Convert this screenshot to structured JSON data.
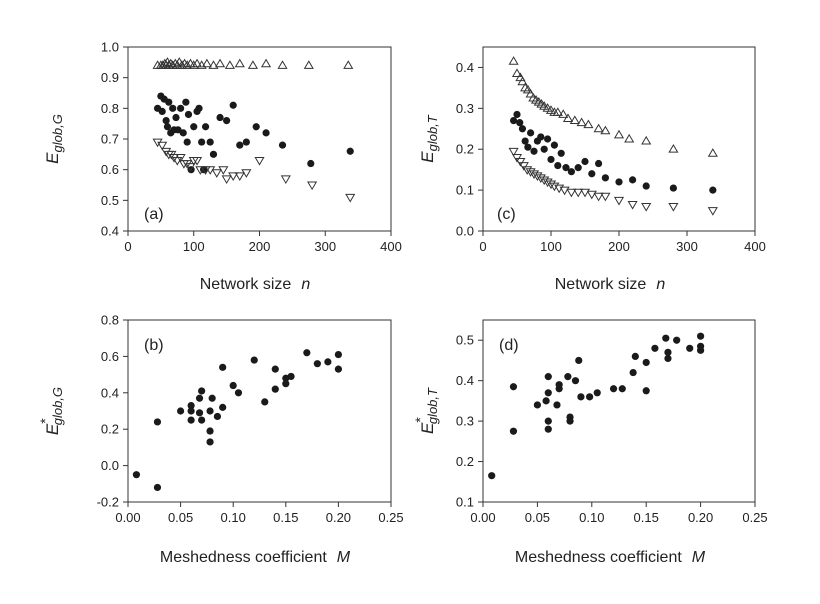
{
  "chart_data": [
    {
      "id": "a",
      "type": "scatter",
      "panel_label": "(a)",
      "xlabel": "Network size",
      "xlabel_var": "n",
      "ylabel_main": "E",
      "ylabel_sub": "glob,G",
      "ylabel_star": "",
      "xlim": [
        0,
        400
      ],
      "ylim": [
        0.4,
        1.0
      ],
      "xticks": [
        "0",
        "100",
        "200",
        "300",
        "400"
      ],
      "xtick_values": [
        0,
        100,
        200,
        300,
        400
      ],
      "yticks": [
        "0.4",
        "0.5",
        "0.6",
        "0.7",
        "0.8",
        "0.9",
        "1.0"
      ],
      "ytick_values": [
        0.4,
        0.5,
        0.6,
        0.7,
        0.8,
        0.9,
        1.0
      ],
      "series": [
        {
          "marker": "triangle-up",
          "points": [
            [
              45,
              0.94
            ],
            [
              50,
              0.94
            ],
            [
              53,
              0.94
            ],
            [
              56,
              0.945
            ],
            [
              58,
              0.94
            ],
            [
              60,
              0.95
            ],
            [
              62,
              0.94
            ],
            [
              65,
              0.945
            ],
            [
              68,
              0.94
            ],
            [
              72,
              0.945
            ],
            [
              75,
              0.94
            ],
            [
              78,
              0.95
            ],
            [
              82,
              0.94
            ],
            [
              86,
              0.945
            ],
            [
              90,
              0.94
            ],
            [
              95,
              0.945
            ],
            [
              100,
              0.94
            ],
            [
              105,
              0.945
            ],
            [
              112,
              0.94
            ],
            [
              120,
              0.945
            ],
            [
              130,
              0.94
            ],
            [
              140,
              0.945
            ],
            [
              155,
              0.94
            ],
            [
              170,
              0.945
            ],
            [
              190,
              0.94
            ],
            [
              210,
              0.945
            ],
            [
              235,
              0.94
            ],
            [
              275,
              0.94
            ],
            [
              335,
              0.94
            ]
          ]
        },
        {
          "marker": "circle",
          "points": [
            [
              45,
              0.8
            ],
            [
              50,
              0.84
            ],
            [
              52,
              0.79
            ],
            [
              55,
              0.83
            ],
            [
              58,
              0.76
            ],
            [
              60,
              0.74
            ],
            [
              62,
              0.82
            ],
            [
              65,
              0.72
            ],
            [
              68,
              0.8
            ],
            [
              70,
              0.73
            ],
            [
              73,
              0.77
            ],
            [
              76,
              0.73
            ],
            [
              80,
              0.8
            ],
            [
              84,
              0.72
            ],
            [
              88,
              0.82
            ],
            [
              90,
              0.69
            ],
            [
              92,
              0.78
            ],
            [
              96,
              0.6
            ],
            [
              100,
              0.74
            ],
            [
              105,
              0.79
            ],
            [
              108,
              0.8
            ],
            [
              112,
              0.69
            ],
            [
              115,
              0.6
            ],
            [
              118,
              0.74
            ],
            [
              125,
              0.69
            ],
            [
              130,
              0.65
            ],
            [
              140,
              0.77
            ],
            [
              150,
              0.76
            ],
            [
              160,
              0.81
            ],
            [
              170,
              0.68
            ],
            [
              180,
              0.69
            ],
            [
              195,
              0.74
            ],
            [
              210,
              0.72
            ],
            [
              235,
              0.68
            ],
            [
              278,
              0.62
            ],
            [
              338,
              0.66
            ]
          ]
        },
        {
          "marker": "triangle-down",
          "points": [
            [
              45,
              0.69
            ],
            [
              52,
              0.68
            ],
            [
              58,
              0.66
            ],
            [
              62,
              0.65
            ],
            [
              66,
              0.65
            ],
            [
              70,
              0.64
            ],
            [
              75,
              0.63
            ],
            [
              80,
              0.64
            ],
            [
              85,
              0.62
            ],
            [
              90,
              0.62
            ],
            [
              95,
              0.61
            ],
            [
              100,
              0.63
            ],
            [
              105,
              0.63
            ],
            [
              110,
              0.6
            ],
            [
              118,
              0.6
            ],
            [
              125,
              0.6
            ],
            [
              135,
              0.59
            ],
            [
              145,
              0.6
            ],
            [
              150,
              0.57
            ],
            [
              160,
              0.58
            ],
            [
              170,
              0.58
            ],
            [
              180,
              0.59
            ],
            [
              200,
              0.63
            ],
            [
              240,
              0.57
            ],
            [
              280,
              0.55
            ],
            [
              338,
              0.51
            ]
          ]
        }
      ]
    },
    {
      "id": "c",
      "type": "scatter",
      "panel_label": "(c)",
      "xlabel": "Network size",
      "xlabel_var": "n",
      "ylabel_main": "E",
      "ylabel_sub": "glob,T",
      "ylabel_star": "",
      "xlim": [
        0,
        400
      ],
      "ylim": [
        0,
        0.45
      ],
      "xticks": [
        "0",
        "100",
        "200",
        "300",
        "400"
      ],
      "xtick_values": [
        0,
        100,
        200,
        300,
        400
      ],
      "yticks": [
        "0.0",
        "0.1",
        "0.2",
        "0.3",
        "0.4"
      ],
      "ytick_values": [
        0,
        0.1,
        0.2,
        0.3,
        0.4
      ],
      "series": [
        {
          "marker": "triangle-up",
          "points": [
            [
              45,
              0.415
            ],
            [
              50,
              0.385
            ],
            [
              55,
              0.375
            ],
            [
              58,
              0.365
            ],
            [
              62,
              0.35
            ],
            [
              66,
              0.345
            ],
            [
              70,
              0.335
            ],
            [
              74,
              0.325
            ],
            [
              78,
              0.32
            ],
            [
              82,
              0.315
            ],
            [
              86,
              0.31
            ],
            [
              90,
              0.305
            ],
            [
              95,
              0.3
            ],
            [
              100,
              0.295
            ],
            [
              105,
              0.29
            ],
            [
              110,
              0.29
            ],
            [
              118,
              0.285
            ],
            [
              125,
              0.275
            ],
            [
              135,
              0.27
            ],
            [
              145,
              0.265
            ],
            [
              155,
              0.26
            ],
            [
              170,
              0.25
            ],
            [
              180,
              0.245
            ],
            [
              200,
              0.235
            ],
            [
              215,
              0.225
            ],
            [
              240,
              0.22
            ],
            [
              280,
              0.2
            ],
            [
              338,
              0.19
            ]
          ]
        },
        {
          "marker": "circle",
          "points": [
            [
              45,
              0.27
            ],
            [
              50,
              0.285
            ],
            [
              54,
              0.265
            ],
            [
              58,
              0.25
            ],
            [
              62,
              0.22
            ],
            [
              66,
              0.205
            ],
            [
              70,
              0.24
            ],
            [
              75,
              0.195
            ],
            [
              80,
              0.22
            ],
            [
              85,
              0.23
            ],
            [
              90,
              0.2
            ],
            [
              95,
              0.225
            ],
            [
              100,
              0.175
            ],
            [
              105,
              0.21
            ],
            [
              110,
              0.16
            ],
            [
              115,
              0.19
            ],
            [
              122,
              0.155
            ],
            [
              130,
              0.145
            ],
            [
              140,
              0.155
            ],
            [
              150,
              0.17
            ],
            [
              160,
              0.14
            ],
            [
              170,
              0.165
            ],
            [
              180,
              0.13
            ],
            [
              200,
              0.12
            ],
            [
              220,
              0.125
            ],
            [
              240,
              0.11
            ],
            [
              280,
              0.105
            ],
            [
              338,
              0.1
            ]
          ]
        },
        {
          "marker": "triangle-down",
          "points": [
            [
              45,
              0.195
            ],
            [
              50,
              0.18
            ],
            [
              55,
              0.17
            ],
            [
              60,
              0.16
            ],
            [
              65,
              0.15
            ],
            [
              70,
              0.145
            ],
            [
              75,
              0.14
            ],
            [
              80,
              0.135
            ],
            [
              85,
              0.13
            ],
            [
              90,
              0.125
            ],
            [
              95,
              0.12
            ],
            [
              100,
              0.115
            ],
            [
              105,
              0.11
            ],
            [
              112,
              0.105
            ],
            [
              120,
              0.1
            ],
            [
              130,
              0.095
            ],
            [
              140,
              0.095
            ],
            [
              150,
              0.095
            ],
            [
              160,
              0.09
            ],
            [
              170,
              0.085
            ],
            [
              180,
              0.085
            ],
            [
              200,
              0.075
            ],
            [
              220,
              0.065
            ],
            [
              240,
              0.06
            ],
            [
              280,
              0.06
            ],
            [
              338,
              0.05
            ]
          ]
        }
      ]
    },
    {
      "id": "b",
      "type": "scatter",
      "panel_label": "(b)",
      "xlabel": "Meshedness coefficient",
      "xlabel_var": "M",
      "ylabel_main": "E",
      "ylabel_sub": "glob,G",
      "ylabel_star": "*",
      "xlim": [
        0,
        0.25
      ],
      "ylim": [
        -0.2,
        0.8
      ],
      "xticks": [
        "0.00",
        "0.05",
        "0.10",
        "0.15",
        "0.20",
        "0.25"
      ],
      "xtick_values": [
        0,
        0.05,
        0.1,
        0.15,
        0.2,
        0.25
      ],
      "yticks": [
        "-0.2",
        "0.0",
        "0.2",
        "0.4",
        "0.6",
        "0.8"
      ],
      "ytick_values": [
        -0.2,
        0,
        0.2,
        0.4,
        0.6,
        0.8
      ],
      "series": [
        {
          "marker": "circle",
          "points": [
            [
              0.008,
              -0.05
            ],
            [
              0.028,
              -0.12
            ],
            [
              0.028,
              0.24
            ],
            [
              0.05,
              0.3
            ],
            [
              0.06,
              0.25
            ],
            [
              0.06,
              0.3
            ],
            [
              0.06,
              0.33
            ],
            [
              0.068,
              0.37
            ],
            [
              0.068,
              0.29
            ],
            [
              0.07,
              0.41
            ],
            [
              0.07,
              0.25
            ],
            [
              0.078,
              0.3
            ],
            [
              0.078,
              0.19
            ],
            [
              0.078,
              0.13
            ],
            [
              0.08,
              0.37
            ],
            [
              0.085,
              0.27
            ],
            [
              0.09,
              0.32
            ],
            [
              0.09,
              0.54
            ],
            [
              0.1,
              0.44
            ],
            [
              0.105,
              0.4
            ],
            [
              0.12,
              0.58
            ],
            [
              0.13,
              0.35
            ],
            [
              0.14,
              0.42
            ],
            [
              0.14,
              0.53
            ],
            [
              0.15,
              0.45
            ],
            [
              0.15,
              0.48
            ],
            [
              0.155,
              0.49
            ],
            [
              0.17,
              0.62
            ],
            [
              0.18,
              0.56
            ],
            [
              0.19,
              0.57
            ],
            [
              0.2,
              0.53
            ],
            [
              0.2,
              0.61
            ]
          ]
        }
      ]
    },
    {
      "id": "d",
      "type": "scatter",
      "panel_label": "(d)",
      "xlabel": "Meshedness coefficient",
      "xlabel_var": "M",
      "ylabel_main": "E",
      "ylabel_sub": "glob,T",
      "ylabel_star": "*",
      "xlim": [
        0,
        0.25
      ],
      "ylim": [
        0.1,
        0.55
      ],
      "xticks": [
        "0.00",
        "0.05",
        "0.10",
        "0.15",
        "0.20",
        "0.25"
      ],
      "xtick_values": [
        0,
        0.05,
        0.1,
        0.15,
        0.2,
        0.25
      ],
      "yticks": [
        "0.1",
        "0.2",
        "0.3",
        "0.4",
        "0.5"
      ],
      "ytick_values": [
        0.1,
        0.2,
        0.3,
        0.4,
        0.5
      ],
      "series": [
        {
          "marker": "circle",
          "points": [
            [
              0.008,
              0.165
            ],
            [
              0.028,
              0.275
            ],
            [
              0.028,
              0.385
            ],
            [
              0.05,
              0.34
            ],
            [
              0.058,
              0.35
            ],
            [
              0.06,
              0.41
            ],
            [
              0.06,
              0.37
            ],
            [
              0.06,
              0.3
            ],
            [
              0.06,
              0.28
            ],
            [
              0.068,
              0.34
            ],
            [
              0.07,
              0.38
            ],
            [
              0.07,
              0.39
            ],
            [
              0.078,
              0.41
            ],
            [
              0.08,
              0.31
            ],
            [
              0.08,
              0.3
            ],
            [
              0.085,
              0.4
            ],
            [
              0.088,
              0.45
            ],
            [
              0.09,
              0.36
            ],
            [
              0.098,
              0.36
            ],
            [
              0.105,
              0.37
            ],
            [
              0.12,
              0.38
            ],
            [
              0.128,
              0.38
            ],
            [
              0.138,
              0.42
            ],
            [
              0.14,
              0.46
            ],
            [
              0.15,
              0.445
            ],
            [
              0.15,
              0.375
            ],
            [
              0.158,
              0.48
            ],
            [
              0.168,
              0.505
            ],
            [
              0.17,
              0.455
            ],
            [
              0.17,
              0.47
            ],
            [
              0.178,
              0.5
            ],
            [
              0.19,
              0.48
            ],
            [
              0.2,
              0.485
            ],
            [
              0.2,
              0.475
            ],
            [
              0.2,
              0.51
            ]
          ]
        }
      ]
    }
  ]
}
